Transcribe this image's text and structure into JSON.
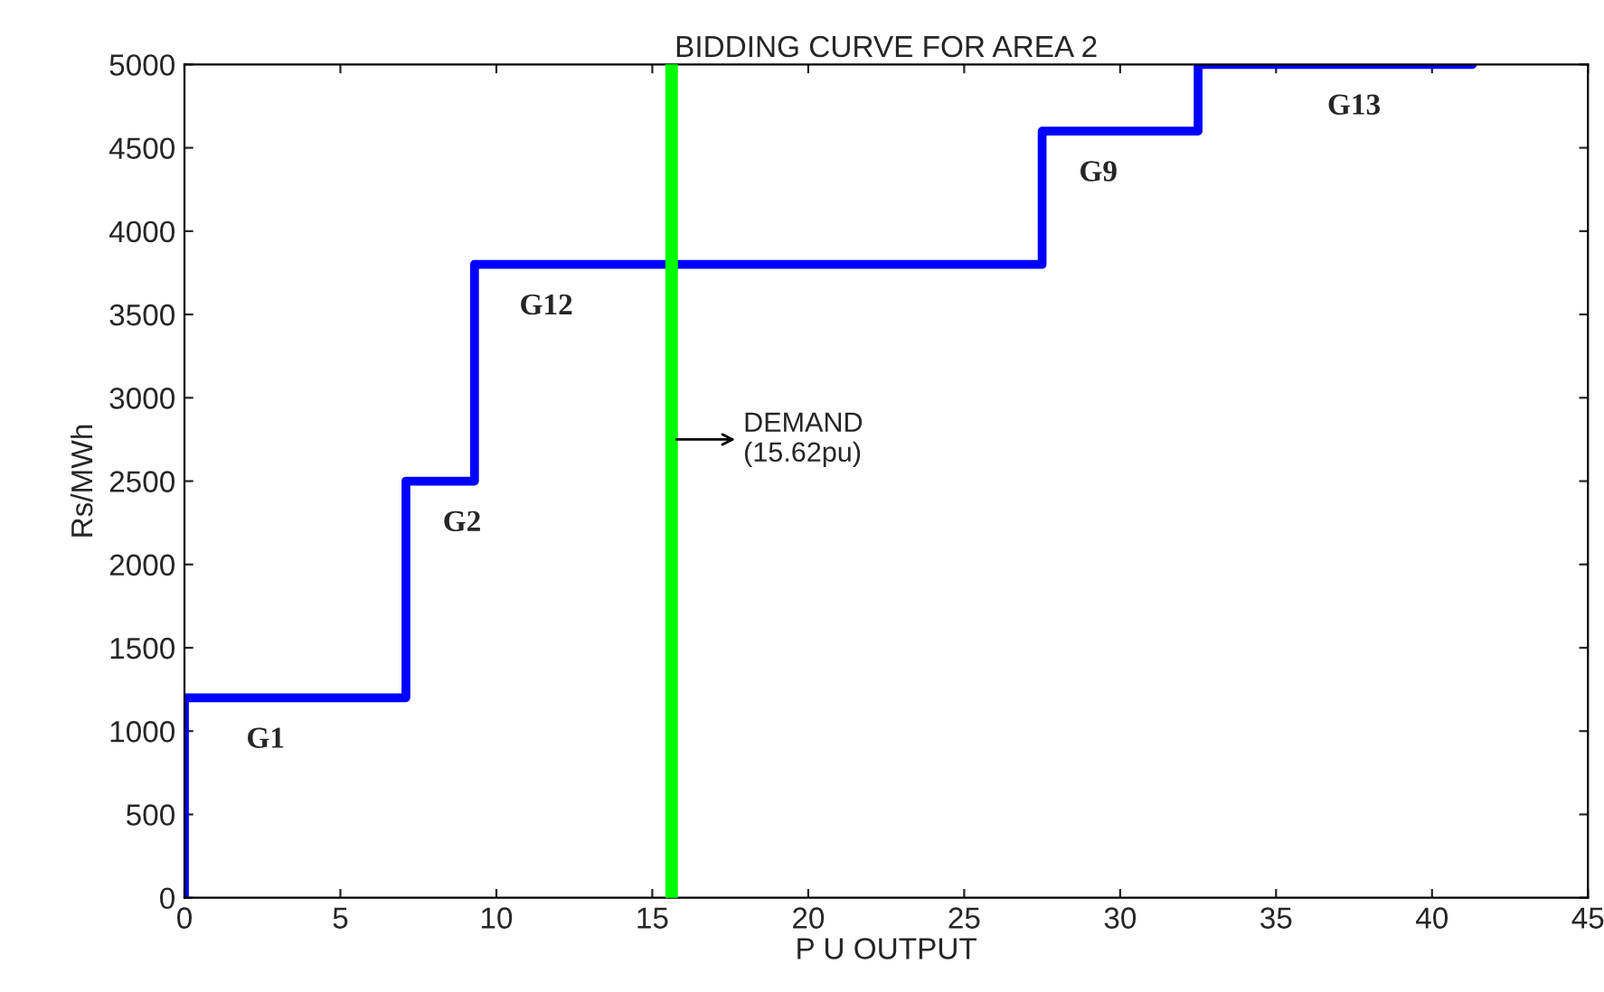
{
  "chart_data": {
    "type": "step",
    "title": "BIDDING CURVE FOR AREA 2",
    "xlabel": "P U OUTPUT",
    "ylabel": "Rs/MWh",
    "x": [
      0,
      0,
      7.1,
      9.3,
      27.5,
      32.5,
      41.3
    ],
    "series": [
      {
        "color": "#0000ff",
        "values": [
          0,
          1200,
          2500,
          3800,
          4600,
          5000,
          5000
        ]
      }
    ],
    "xlim": [
      0,
      45
    ],
    "xticks": [
      0,
      5,
      10,
      15,
      20,
      25,
      30,
      35,
      40,
      45
    ],
    "ylim": [
      0,
      5000
    ],
    "yticks": [
      0,
      500,
      1000,
      1500,
      2000,
      2500,
      3000,
      3500,
      4000,
      4500,
      5000
    ],
    "ref_lines": [
      {
        "axis": "x",
        "value": 15.62,
        "color": "#00ff00"
      }
    ],
    "annotations": [
      {
        "text": "G1",
        "x": 2.6,
        "y": 1200
      },
      {
        "text": "G2",
        "x": 8.9,
        "y": 2500
      },
      {
        "text": "G12",
        "x": 11.6,
        "y": 3800
      },
      {
        "text": "G9",
        "x": 29.3,
        "y": 4600
      },
      {
        "text": "G13",
        "x": 37.5,
        "y": 5000
      },
      {
        "text": "DEMAND\n(15.62pu)",
        "x": 15.62,
        "y": 2750
      }
    ],
    "grid": false,
    "legend": false
  }
}
